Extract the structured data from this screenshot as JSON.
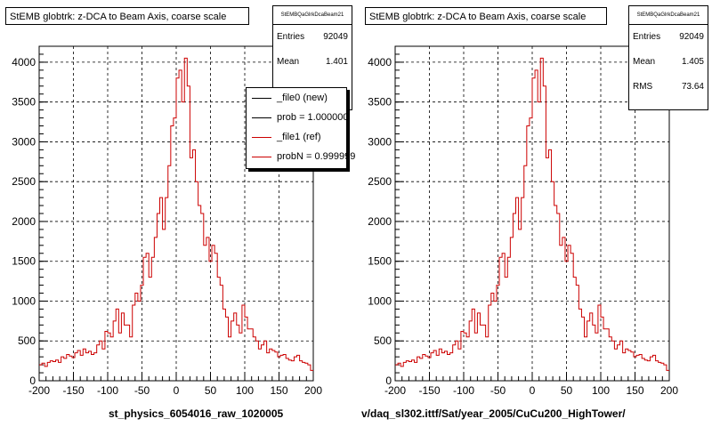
{
  "chart_data": [
    {
      "type": "histogram",
      "title": "StEMB globtrk: z-DCA to Beam Axis, coarse scale",
      "xlabel": "st_physics_6054016_raw_1020005",
      "xlim": [
        -200,
        200
      ],
      "ylim": [
        0,
        4200
      ],
      "x_ticks": [
        "-200",
        "-150",
        "-100",
        "-50",
        "0",
        "50",
        "100",
        "150",
        "200"
      ],
      "y_ticks": [
        "0",
        "500",
        "1000",
        "1500",
        "2000",
        "2500",
        "3000",
        "3500",
        "4000"
      ],
      "grid": true,
      "bin_width": 4,
      "x_start": -200,
      "series": [
        {
          "name": "_file1 (ref)",
          "color": "#cc0000",
          "values": [
            200,
            220,
            180,
            230,
            250,
            240,
            260,
            230,
            300,
            280,
            330,
            310,
            290,
            350,
            380,
            320,
            400,
            350,
            370,
            330,
            350,
            450,
            500,
            400,
            620,
            600,
            550,
            750,
            900,
            600,
            850,
            700,
            700,
            550,
            950,
            1100,
            1000,
            1200,
            1550,
            1600,
            1300,
            1550,
            1800,
            2100,
            2300,
            1900,
            2300,
            2700,
            3200,
            3300,
            3800,
            3900,
            3500,
            4050,
            3700,
            2800,
            2900,
            2500,
            2200,
            2100,
            1700,
            1800,
            1500,
            1700,
            1600,
            1300,
            1200,
            900,
            800,
            550,
            750,
            850,
            700,
            600,
            950,
            800,
            650,
            650,
            550,
            500,
            400,
            450,
            500,
            350,
            400,
            380,
            360,
            300,
            320,
            330,
            280,
            260,
            250,
            300,
            320,
            250,
            230,
            220,
            200,
            130
          ]
        }
      ],
      "stats": {
        "header": "StEMBQaGlrkDcaBeam21",
        "entries_label": "Entries",
        "entries": "92049",
        "mean_label": "Mean",
        "mean": "1.401"
      },
      "legend": [
        {
          "label": "_file0 (new)",
          "color": "#000000"
        },
        {
          "label": "prob = 1.000000",
          "color": "#000000"
        },
        {
          "label": "_file1 (ref)",
          "color": "#cc0000"
        },
        {
          "label": "probN = 0.999999",
          "color": "#cc0000"
        }
      ],
      "legend_placement": "top-right"
    },
    {
      "type": "histogram",
      "title": "StEMB globtrk: z-DCA to Beam Axis, coarse scale",
      "xlabel": "v/daq_sl302.ittf/Sat/year_2005/CuCu200_HighTower/",
      "xlim": [
        -200,
        200
      ],
      "ylim": [
        0,
        4200
      ],
      "x_ticks": [
        "-200",
        "-150",
        "-100",
        "-50",
        "0",
        "50",
        "100",
        "150",
        "200"
      ],
      "y_ticks": [
        "0",
        "500",
        "1000",
        "1500",
        "2000",
        "2500",
        "3000",
        "3500",
        "4000"
      ],
      "grid": true,
      "bin_width": 4,
      "x_start": -200,
      "series": [
        {
          "name": "",
          "color": "#cc0000",
          "values": [
            200,
            220,
            180,
            230,
            250,
            240,
            260,
            230,
            300,
            280,
            330,
            310,
            290,
            350,
            380,
            320,
            400,
            350,
            370,
            330,
            350,
            450,
            500,
            400,
            620,
            600,
            550,
            750,
            900,
            600,
            850,
            700,
            700,
            550,
            950,
            1100,
            1000,
            1200,
            1550,
            1600,
            1300,
            1550,
            1800,
            2100,
            2300,
            1900,
            2300,
            2700,
            3200,
            3300,
            3800,
            3900,
            3500,
            4050,
            3700,
            2800,
            2900,
            2500,
            2200,
            2100,
            1700,
            1800,
            1500,
            1700,
            1600,
            1300,
            1200,
            900,
            800,
            550,
            750,
            850,
            700,
            600,
            950,
            800,
            650,
            650,
            550,
            500,
            400,
            450,
            500,
            350,
            400,
            380,
            360,
            300,
            320,
            330,
            280,
            260,
            250,
            300,
            320,
            250,
            230,
            220,
            200,
            130
          ]
        }
      ],
      "stats": {
        "header": "StEMBQaGlrkDcaBeam21",
        "entries_label": "Entries",
        "entries": "92049",
        "mean_label": "Mean",
        "mean": "1.405",
        "rms_label": "RMS",
        "rms": "73.64"
      }
    }
  ]
}
